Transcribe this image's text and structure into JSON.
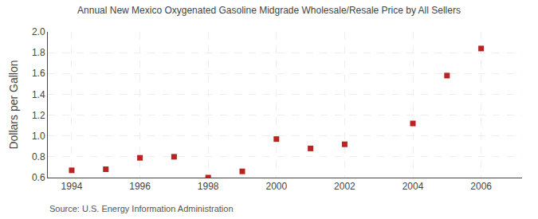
{
  "chart_data": {
    "type": "scatter",
    "title": "Annual New Mexico Oxygenated Gasoline Midgrade Wholesale/Resale Price by All Sellers",
    "y_label": "Dollars per Gallon",
    "annotations": [
      "Source: U.S. Energy Information Administration"
    ],
    "x": [
      1994,
      1995,
      1996,
      1997,
      1998,
      1999,
      2000,
      2001,
      2002,
      2004,
      2005,
      2006
    ],
    "values": [
      0.67,
      0.68,
      0.79,
      0.8,
      0.6,
      0.66,
      0.97,
      0.88,
      0.92,
      1.12,
      1.58,
      1.84
    ],
    "color": "#bb2222",
    "marker": "square",
    "xlim": [
      1993.3,
      2007.2
    ],
    "ylim": [
      0.6,
      2.0
    ],
    "xticks": [
      1994,
      1996,
      1998,
      2000,
      2002,
      2004,
      2006
    ],
    "yticks": [
      0.6,
      0.8,
      {
        "value": 1.0,
        "label": "1.0"
      },
      1.2,
      1.4,
      1.6,
      1.8,
      {
        "value": 2.0,
        "label": "2.0"
      }
    ],
    "grid": true
  }
}
